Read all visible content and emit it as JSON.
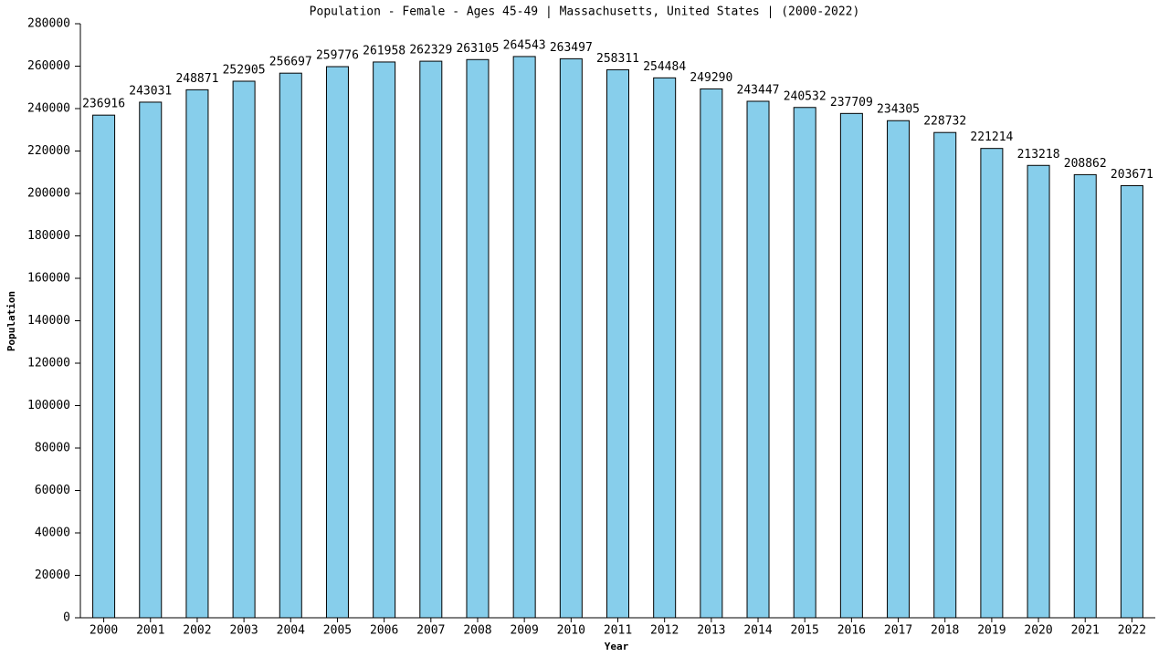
{
  "chart_data": {
    "type": "bar",
    "title": "Population - Female - Ages 45-49 | Massachusetts, United States |  (2000-2022)",
    "x_label": "Year",
    "y_label": "Population",
    "categories": [
      "2000",
      "2001",
      "2002",
      "2003",
      "2004",
      "2005",
      "2006",
      "2007",
      "2008",
      "2009",
      "2010",
      "2011",
      "2012",
      "2013",
      "2014",
      "2015",
      "2016",
      "2017",
      "2018",
      "2019",
      "2020",
      "2021",
      "2022"
    ],
    "values": [
      236916,
      243031,
      248871,
      252905,
      256697,
      259776,
      261958,
      262329,
      263105,
      264543,
      263497,
      258311,
      254484,
      249290,
      243447,
      240532,
      237709,
      234305,
      228732,
      221214,
      213218,
      208862,
      203671
    ],
    "color": "#87ceeb",
    "ylim": [
      0,
      280000
    ],
    "yticks": [
      0,
      20000,
      40000,
      60000,
      80000,
      100000,
      120000,
      140000,
      160000,
      180000,
      200000,
      220000,
      240000,
      260000,
      280000
    ],
    "grid": false
  }
}
